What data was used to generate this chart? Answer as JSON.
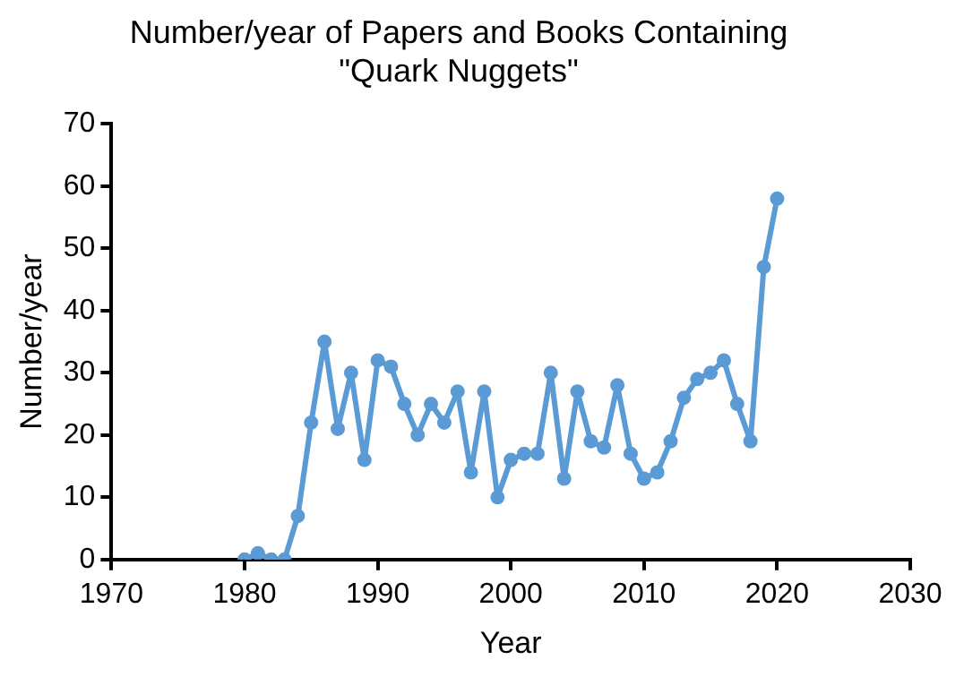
{
  "chart_data": {
    "type": "line",
    "title": "Number/year of Papers and Books Containing\n\"Quark Nuggets\"",
    "xlabel": "Year",
    "ylabel": "Number/year",
    "x": [
      1980,
      1981,
      1982,
      1983,
      1984,
      1985,
      1986,
      1987,
      1988,
      1989,
      1990,
      1991,
      1992,
      1993,
      1994,
      1995,
      1996,
      1997,
      1998,
      1999,
      2000,
      2001,
      2002,
      2003,
      2004,
      2005,
      2006,
      2007,
      2008,
      2009,
      2010,
      2011,
      2012,
      2013,
      2014,
      2015,
      2016,
      2017,
      2018,
      2019,
      2020
    ],
    "series": [
      {
        "color": "#5b9bd5",
        "values": [
          0,
          1,
          0,
          0,
          7,
          22,
          35,
          21,
          30,
          16,
          32,
          31,
          25,
          20,
          25,
          22,
          27,
          14,
          27,
          10,
          16,
          17,
          17,
          30,
          13,
          27,
          19,
          18,
          28,
          17,
          13,
          14,
          19,
          26,
          29,
          30,
          32,
          25,
          19,
          47,
          58
        ]
      }
    ],
    "xlim": [
      1970,
      2030
    ],
    "xticks": [
      1970,
      1980,
      1990,
      2000,
      2010,
      2020,
      2030
    ],
    "ylim": [
      0,
      70
    ],
    "yticks": [
      0,
      10,
      20,
      30,
      40,
      50,
      60,
      70
    ],
    "grid": false,
    "legend": false,
    "marker": "circle",
    "line_style": "solid"
  }
}
